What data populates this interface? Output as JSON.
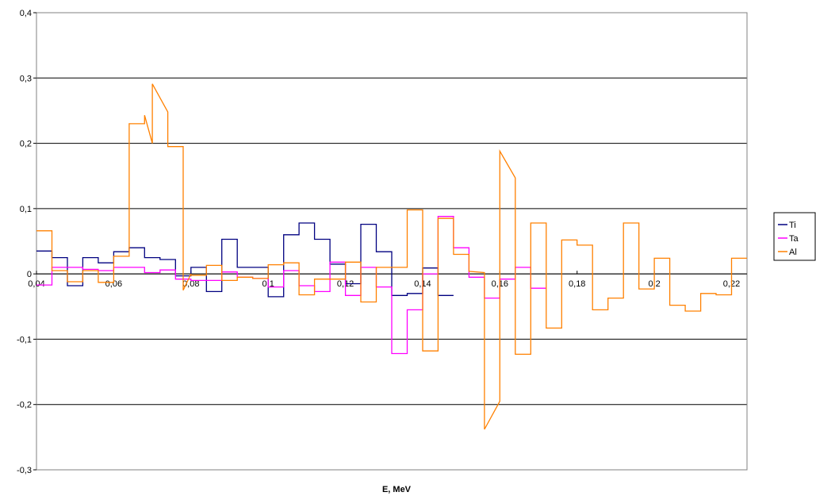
{
  "chart_data": {
    "type": "line",
    "title": "",
    "xlabel": "E, MeV",
    "ylabel": "",
    "xlim": [
      0.04,
      0.224
    ],
    "ylim": [
      -0.3,
      0.4
    ],
    "grid": "horizontal",
    "legend_position": "right",
    "x_ticks": [
      {
        "v": 0.04,
        "label": "0,04"
      },
      {
        "v": 0.06,
        "label": "0,06"
      },
      {
        "v": 0.08,
        "label": "0,08"
      },
      {
        "v": 0.1,
        "label": "0,1"
      },
      {
        "v": 0.12,
        "label": "0,12"
      },
      {
        "v": 0.14,
        "label": "0,14"
      },
      {
        "v": 0.16,
        "label": "0,16"
      },
      {
        "v": 0.18,
        "label": "0,18"
      },
      {
        "v": 0.2,
        "label": "0,2"
      },
      {
        "v": 0.22,
        "label": "0,22"
      }
    ],
    "y_ticks": [
      {
        "v": 0.4,
        "label": "0,4"
      },
      {
        "v": 0.3,
        "label": "0,3"
      },
      {
        "v": 0.2,
        "label": "0,2"
      },
      {
        "v": 0.1,
        "label": "0,1"
      },
      {
        "v": 0.0,
        "label": "0"
      },
      {
        "v": -0.1,
        "label": "-0,1"
      },
      {
        "v": -0.2,
        "label": "-0,2"
      },
      {
        "v": -0.3,
        "label": "-0,3"
      }
    ],
    "series": [
      {
        "name": "Ti",
        "color": "#000080",
        "points": [
          [
            0.04,
            0.035
          ],
          [
            0.044,
            0.035
          ],
          [
            0.044,
            0.025
          ],
          [
            0.048,
            0.025
          ],
          [
            0.048,
            -0.018
          ],
          [
            0.052,
            -0.018
          ],
          [
            0.052,
            0.025
          ],
          [
            0.056,
            0.025
          ],
          [
            0.056,
            0.017
          ],
          [
            0.06,
            0.017
          ],
          [
            0.06,
            0.034
          ],
          [
            0.064,
            0.034
          ],
          [
            0.064,
            0.04
          ],
          [
            0.068,
            0.04
          ],
          [
            0.068,
            0.025
          ],
          [
            0.072,
            0.025
          ],
          [
            0.072,
            0.022
          ],
          [
            0.076,
            0.022
          ],
          [
            0.076,
            -0.003
          ],
          [
            0.08,
            -0.003
          ],
          [
            0.08,
            0.01
          ],
          [
            0.084,
            0.01
          ],
          [
            0.084,
            -0.027
          ],
          [
            0.088,
            -0.027
          ],
          [
            0.088,
            0.053
          ],
          [
            0.092,
            0.053
          ],
          [
            0.092,
            0.01
          ],
          [
            0.096,
            0.01
          ],
          [
            0.096,
            0.01
          ],
          [
            0.1,
            0.01
          ],
          [
            0.1,
            -0.035
          ],
          [
            0.104,
            -0.035
          ],
          [
            0.104,
            0.06
          ],
          [
            0.108,
            0.06
          ],
          [
            0.108,
            0.078
          ],
          [
            0.112,
            0.078
          ],
          [
            0.112,
            0.053
          ],
          [
            0.116,
            0.053
          ],
          [
            0.116,
            0.015
          ],
          [
            0.12,
            0.015
          ],
          [
            0.12,
            -0.015
          ],
          [
            0.124,
            -0.015
          ],
          [
            0.124,
            0.076
          ],
          [
            0.128,
            0.076
          ],
          [
            0.128,
            0.034
          ],
          [
            0.132,
            0.034
          ],
          [
            0.132,
            -0.033
          ],
          [
            0.136,
            -0.033
          ],
          [
            0.136,
            -0.03
          ],
          [
            0.14,
            -0.03
          ],
          [
            0.14,
            0.009
          ],
          [
            0.144,
            0.009
          ],
          [
            0.144,
            -0.033
          ],
          [
            0.148,
            -0.033
          ]
        ]
      },
      {
        "name": "Ta",
        "color": "#ff00ff",
        "points": [
          [
            0.04,
            -0.017
          ],
          [
            0.044,
            -0.017
          ],
          [
            0.044,
            0.01
          ],
          [
            0.048,
            0.01
          ],
          [
            0.048,
            0.01
          ],
          [
            0.052,
            0.01
          ],
          [
            0.052,
            0.007
          ],
          [
            0.056,
            0.007
          ],
          [
            0.056,
            0.005
          ],
          [
            0.06,
            0.005
          ],
          [
            0.06,
            0.01
          ],
          [
            0.064,
            0.01
          ],
          [
            0.064,
            0.01
          ],
          [
            0.068,
            0.01
          ],
          [
            0.068,
            0.002
          ],
          [
            0.072,
            0.002
          ],
          [
            0.072,
            0.006
          ],
          [
            0.076,
            0.006
          ],
          [
            0.076,
            -0.008
          ],
          [
            0.08,
            -0.008
          ],
          [
            0.08,
            -0.01
          ],
          [
            0.084,
            -0.01
          ],
          [
            0.084,
            -0.01
          ],
          [
            0.088,
            -0.01
          ],
          [
            0.088,
            0.003
          ],
          [
            0.092,
            0.003
          ],
          [
            0.092,
            -0.005
          ],
          [
            0.096,
            -0.005
          ],
          [
            0.096,
            -0.007
          ],
          [
            0.1,
            -0.007
          ],
          [
            0.1,
            -0.02
          ],
          [
            0.104,
            -0.02
          ],
          [
            0.104,
            0.005
          ],
          [
            0.108,
            0.005
          ],
          [
            0.108,
            -0.018
          ],
          [
            0.112,
            -0.018
          ],
          [
            0.112,
            -0.027
          ],
          [
            0.116,
            -0.027
          ],
          [
            0.116,
            0.018
          ],
          [
            0.12,
            0.018
          ],
          [
            0.12,
            -0.033
          ],
          [
            0.124,
            -0.033
          ],
          [
            0.124,
            0.01
          ],
          [
            0.128,
            0.01
          ],
          [
            0.128,
            -0.02
          ],
          [
            0.132,
            -0.02
          ],
          [
            0.132,
            -0.122
          ],
          [
            0.136,
            -0.122
          ],
          [
            0.136,
            -0.055
          ],
          [
            0.14,
            -0.055
          ],
          [
            0.14,
            0.0
          ],
          [
            0.144,
            0.0
          ],
          [
            0.144,
            0.088
          ],
          [
            0.148,
            0.088
          ],
          [
            0.148,
            0.04
          ],
          [
            0.152,
            0.04
          ],
          [
            0.152,
            -0.005
          ],
          [
            0.156,
            -0.005
          ],
          [
            0.156,
            -0.037
          ],
          [
            0.16,
            -0.037
          ],
          [
            0.16,
            -0.008
          ],
          [
            0.164,
            -0.008
          ],
          [
            0.164,
            0.01
          ],
          [
            0.168,
            0.01
          ],
          [
            0.168,
            -0.022
          ],
          [
            0.172,
            -0.022
          ]
        ]
      },
      {
        "name": "Al",
        "color": "#ff8000",
        "points": [
          [
            0.04,
            0.066
          ],
          [
            0.044,
            0.066
          ],
          [
            0.044,
            0.005
          ],
          [
            0.048,
            0.005
          ],
          [
            0.048,
            -0.012
          ],
          [
            0.052,
            -0.012
          ],
          [
            0.052,
            0.005
          ],
          [
            0.056,
            0.005
          ],
          [
            0.056,
            -0.013
          ],
          [
            0.06,
            -0.013
          ],
          [
            0.06,
            0.027
          ],
          [
            0.064,
            0.027
          ],
          [
            0.064,
            0.23
          ],
          [
            0.068,
            0.23
          ],
          [
            0.068,
            0.243
          ],
          [
            0.07,
            0.2
          ],
          [
            0.07,
            0.291
          ],
          [
            0.074,
            0.248
          ],
          [
            0.074,
            0.195
          ],
          [
            0.078,
            0.195
          ],
          [
            0.078,
            -0.025
          ],
          [
            0.08,
            0.0
          ],
          [
            0.08,
            -0.002
          ],
          [
            0.084,
            -0.002
          ],
          [
            0.084,
            0.013
          ],
          [
            0.088,
            0.013
          ],
          [
            0.088,
            -0.01
          ],
          [
            0.092,
            -0.01
          ],
          [
            0.092,
            -0.005
          ],
          [
            0.096,
            -0.005
          ],
          [
            0.096,
            -0.007
          ],
          [
            0.1,
            -0.007
          ],
          [
            0.1,
            0.014
          ],
          [
            0.104,
            0.014
          ],
          [
            0.104,
            0.017
          ],
          [
            0.108,
            0.017
          ],
          [
            0.108,
            -0.032
          ],
          [
            0.112,
            -0.032
          ],
          [
            0.112,
            -0.008
          ],
          [
            0.116,
            -0.008
          ],
          [
            0.116,
            -0.008
          ],
          [
            0.12,
            -0.008
          ],
          [
            0.12,
            0.018
          ],
          [
            0.124,
            0.018
          ],
          [
            0.124,
            -0.043
          ],
          [
            0.128,
            -0.043
          ],
          [
            0.128,
            0.01
          ],
          [
            0.132,
            0.01
          ],
          [
            0.132,
            0.01
          ],
          [
            0.136,
            0.01
          ],
          [
            0.136,
            0.098
          ],
          [
            0.14,
            0.098
          ],
          [
            0.14,
            -0.118
          ],
          [
            0.144,
            -0.118
          ],
          [
            0.144,
            0.085
          ],
          [
            0.148,
            0.085
          ],
          [
            0.148,
            0.03
          ],
          [
            0.152,
            0.03
          ],
          [
            0.152,
            0.004
          ],
          [
            0.156,
            0.002
          ],
          [
            0.156,
            -0.238
          ],
          [
            0.16,
            -0.195
          ],
          [
            0.16,
            0.188
          ],
          [
            0.164,
            0.147
          ],
          [
            0.164,
            -0.123
          ],
          [
            0.168,
            -0.123
          ],
          [
            0.168,
            0.078
          ],
          [
            0.172,
            0.078
          ],
          [
            0.172,
            -0.083
          ],
          [
            0.176,
            -0.083
          ],
          [
            0.176,
            0.052
          ],
          [
            0.18,
            0.052
          ],
          [
            0.18,
            0.044
          ],
          [
            0.184,
            0.044
          ],
          [
            0.184,
            -0.055
          ],
          [
            0.188,
            -0.055
          ],
          [
            0.188,
            -0.037
          ],
          [
            0.192,
            -0.037
          ],
          [
            0.192,
            0.078
          ],
          [
            0.196,
            0.078
          ],
          [
            0.196,
            -0.023
          ],
          [
            0.2,
            -0.023
          ],
          [
            0.2,
            0.024
          ],
          [
            0.204,
            0.024
          ],
          [
            0.204,
            -0.048
          ],
          [
            0.208,
            -0.048
          ],
          [
            0.208,
            -0.057
          ],
          [
            0.212,
            -0.057
          ],
          [
            0.212,
            -0.03
          ],
          [
            0.216,
            -0.03
          ],
          [
            0.216,
            -0.032
          ],
          [
            0.22,
            -0.032
          ],
          [
            0.22,
            0.024
          ],
          [
            0.224,
            0.024
          ]
        ]
      }
    ]
  }
}
